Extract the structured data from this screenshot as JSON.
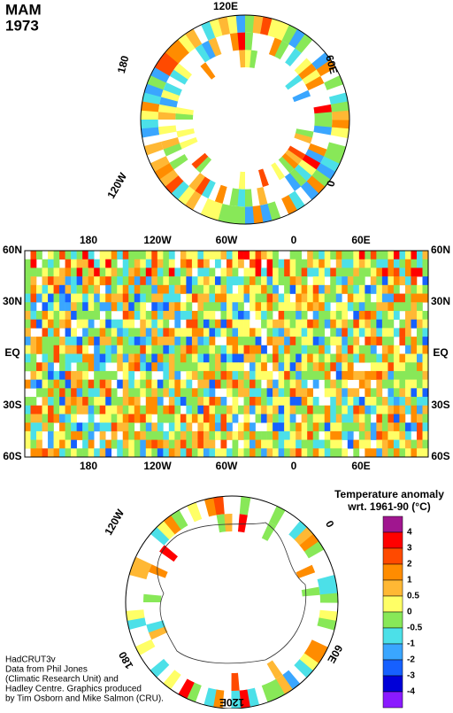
{
  "title": [
    "MAM",
    "1973"
  ],
  "north_polar": {
    "labels": [
      "120E",
      "60E",
      "0",
      "120W",
      "180"
    ]
  },
  "map": {
    "top_labels": [
      "180",
      "120W",
      "60W",
      "0",
      "60E"
    ],
    "bottom_labels": [
      "180",
      "120W",
      "60W",
      "0",
      "60E"
    ],
    "lat_labels": [
      "60N",
      "30N",
      "EQ",
      "30S",
      "60S"
    ]
  },
  "south_polar": {
    "labels": [
      "120W",
      "0",
      "60E",
      "120E",
      "180"
    ]
  },
  "legend": {
    "title": [
      "Temperature anomaly",
      "wrt. 1961-90  (°C)"
    ],
    "labels": [
      "4",
      "3",
      "2",
      "1",
      "0.5",
      "0",
      "-0.5",
      "-1",
      "-2",
      "-3",
      "-4"
    ],
    "colors": [
      "#a0168f",
      "#ff0000",
      "#ff4a00",
      "#ff8c00",
      "#ffb834",
      "#ffff66",
      "#88e858",
      "#4ce0e8",
      "#3aa6ff",
      "#1660ff",
      "#0000d8",
      "#8a1aff"
    ]
  },
  "credit": [
    "HadCRUT3v",
    "Data from Phil Jones",
    "(Climatic Research Unit) and",
    "Hadley Centre.  Graphics produced",
    "by Tim Osborn and Mike Salmon (CRU)."
  ]
}
